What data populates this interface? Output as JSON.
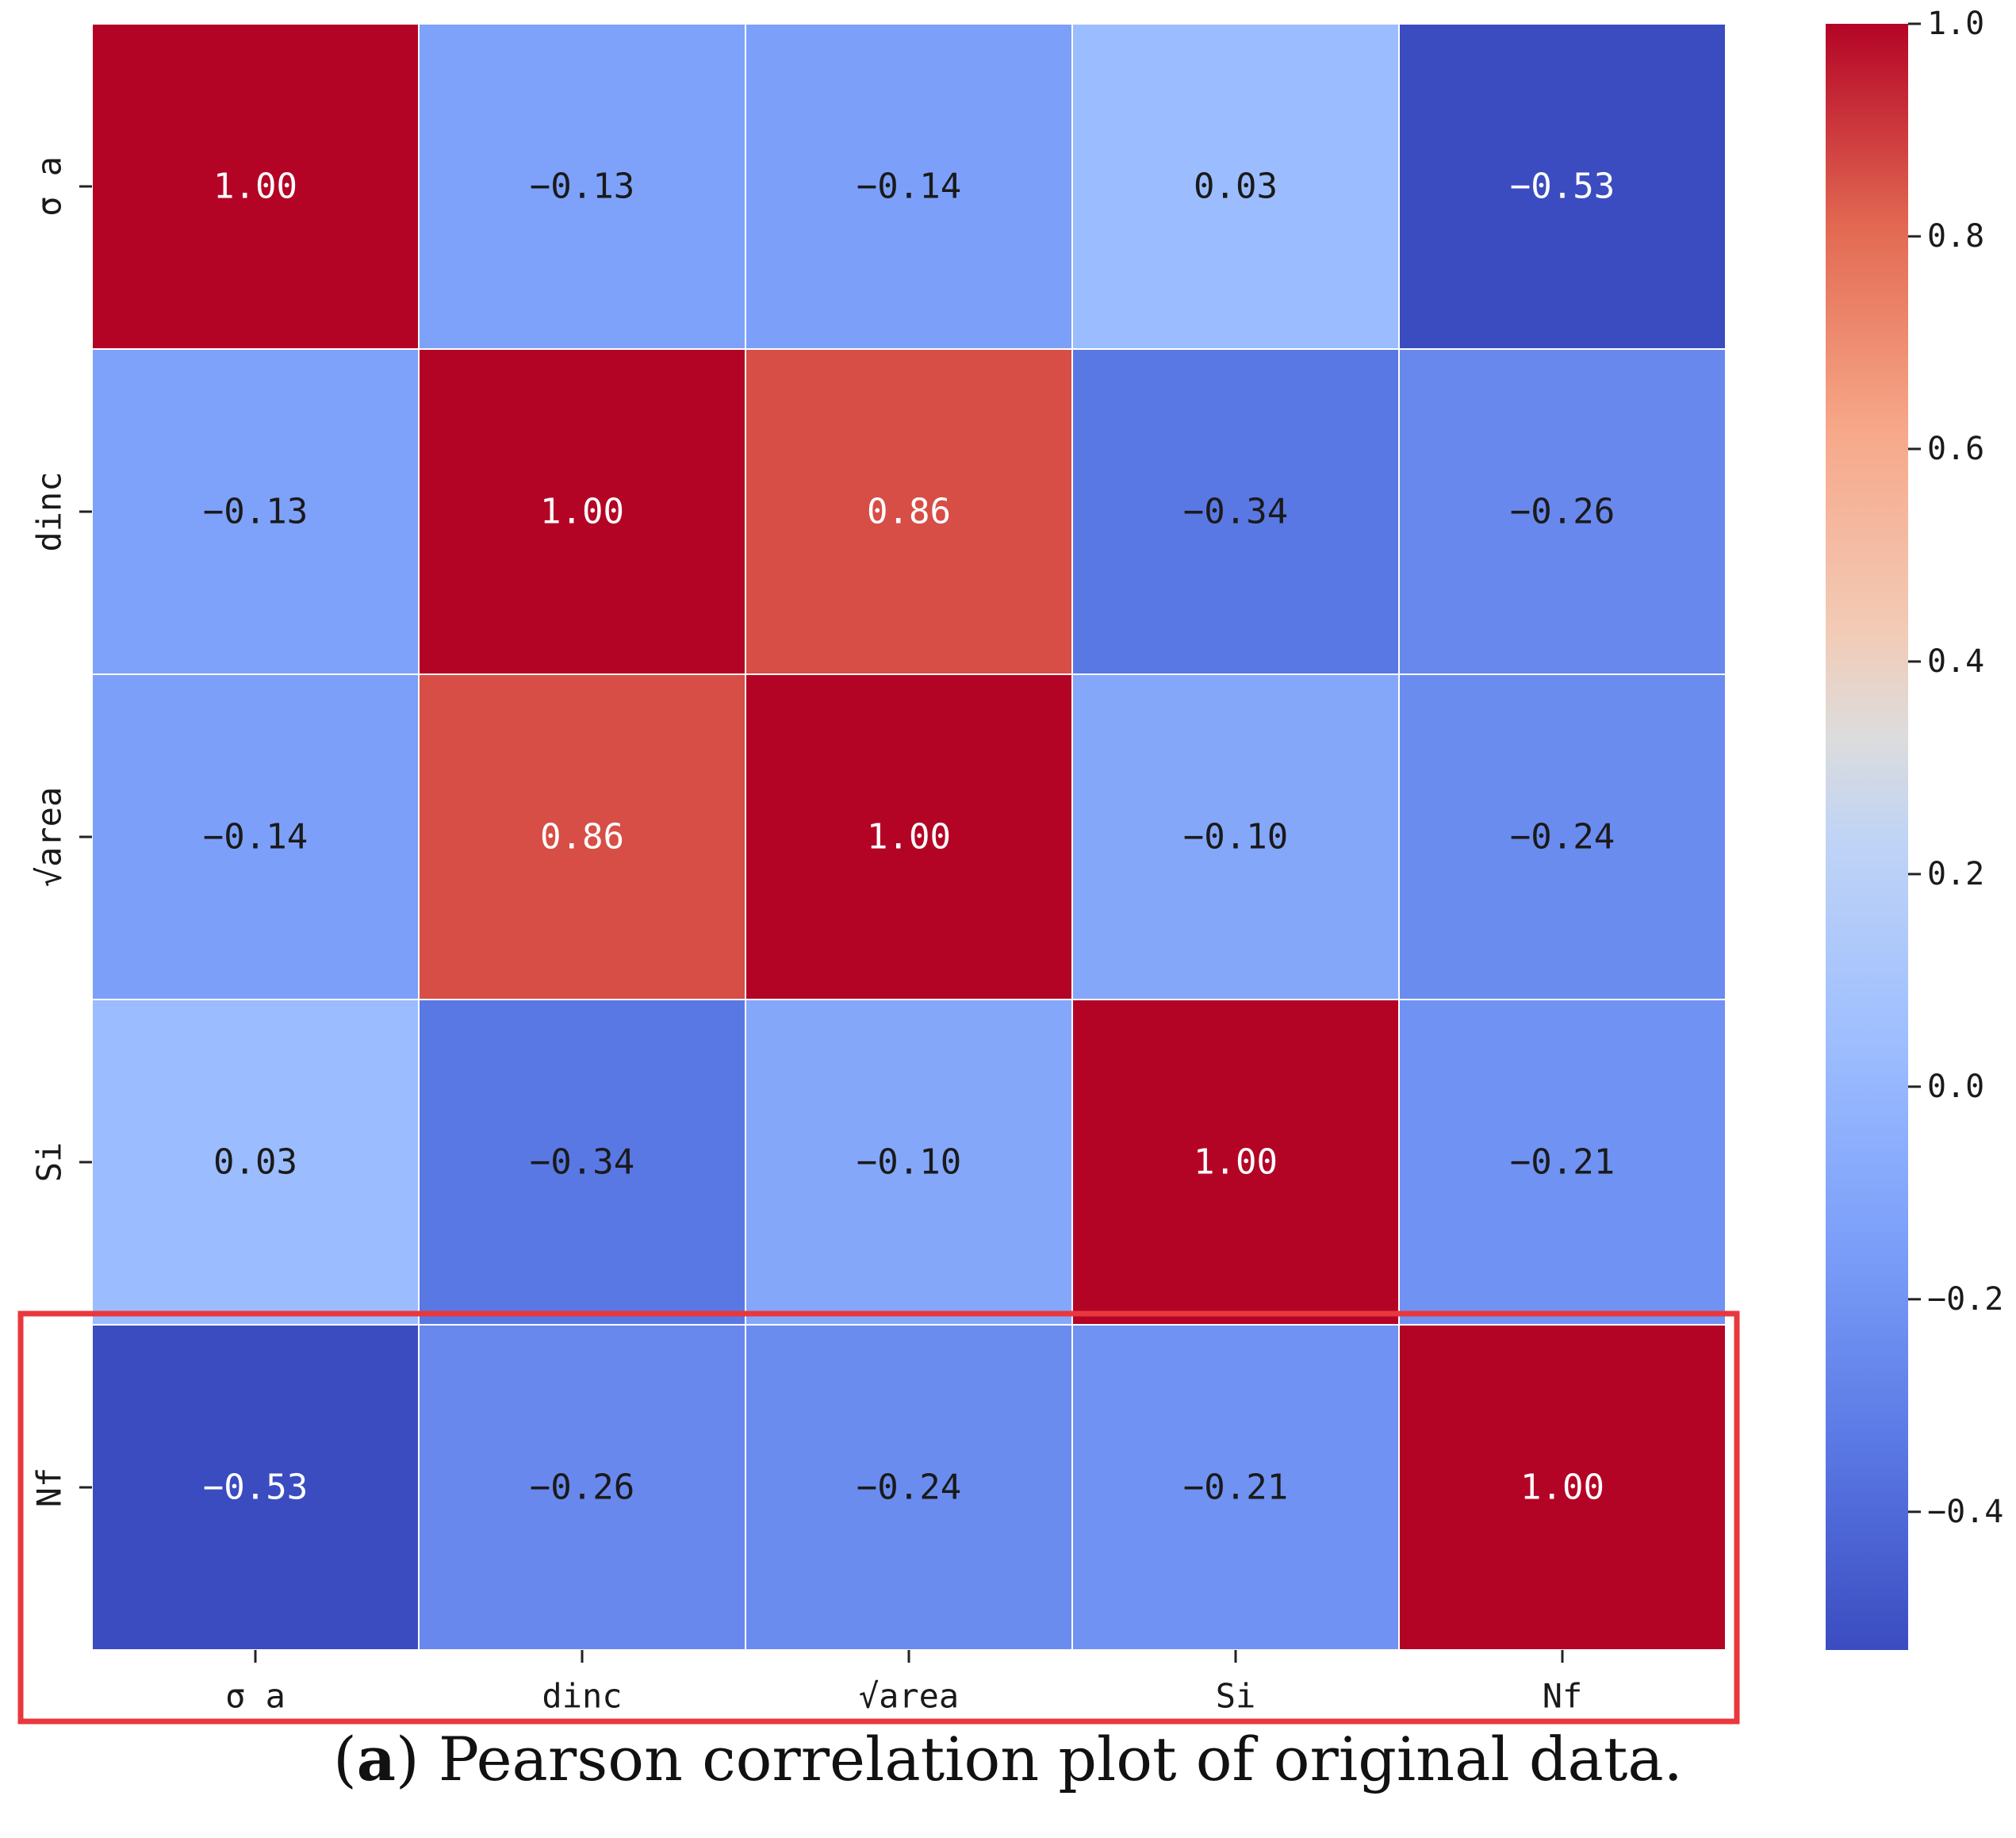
{
  "chart_data": {
    "type": "heatmap",
    "title": "",
    "row_labels": [
      "σ a",
      "dinc",
      "√area",
      "Si",
      "Nf"
    ],
    "col_labels": [
      "σ a",
      "dinc",
      "√area",
      "Si",
      "Nf"
    ],
    "values": [
      [
        1.0,
        -0.13,
        -0.14,
        0.03,
        -0.53
      ],
      [
        -0.13,
        1.0,
        0.86,
        -0.34,
        -0.26
      ],
      [
        -0.14,
        0.86,
        1.0,
        -0.1,
        -0.24
      ],
      [
        0.03,
        -0.34,
        -0.1,
        1.0,
        -0.21
      ],
      [
        -0.53,
        -0.26,
        -0.24,
        -0.21,
        1.0
      ]
    ],
    "display_values": [
      [
        "1.00",
        "−0.13",
        "−0.14",
        "0.03",
        "−0.53"
      ],
      [
        "−0.13",
        "1.00",
        "0.86",
        "−0.34",
        "−0.26"
      ],
      [
        "−0.14",
        "0.86",
        "1.00",
        "−0.10",
        "−0.24"
      ],
      [
        "0.03",
        "−0.34",
        "−0.10",
        "1.00",
        "−0.21"
      ],
      [
        "−0.53",
        "−0.26",
        "−0.24",
        "−0.21",
        "1.00"
      ]
    ],
    "colormap": "coolwarm",
    "vmin": -0.53,
    "vmax": 1.0,
    "colorbar_ticks": [
      1.0,
      0.8,
      0.6,
      0.4,
      0.2,
      0.0,
      -0.2,
      -0.4
    ],
    "colorbar_tick_labels": [
      "1.0",
      "0.8",
      "0.6",
      "0.4",
      "0.2",
      "0.0",
      "−0.2",
      "−0.4"
    ],
    "highlight": {
      "type": "row",
      "row_label": "Nf",
      "color": "#e8383d"
    }
  },
  "caption": {
    "label": "a",
    "text": "Pearson correlation plot of original data."
  }
}
